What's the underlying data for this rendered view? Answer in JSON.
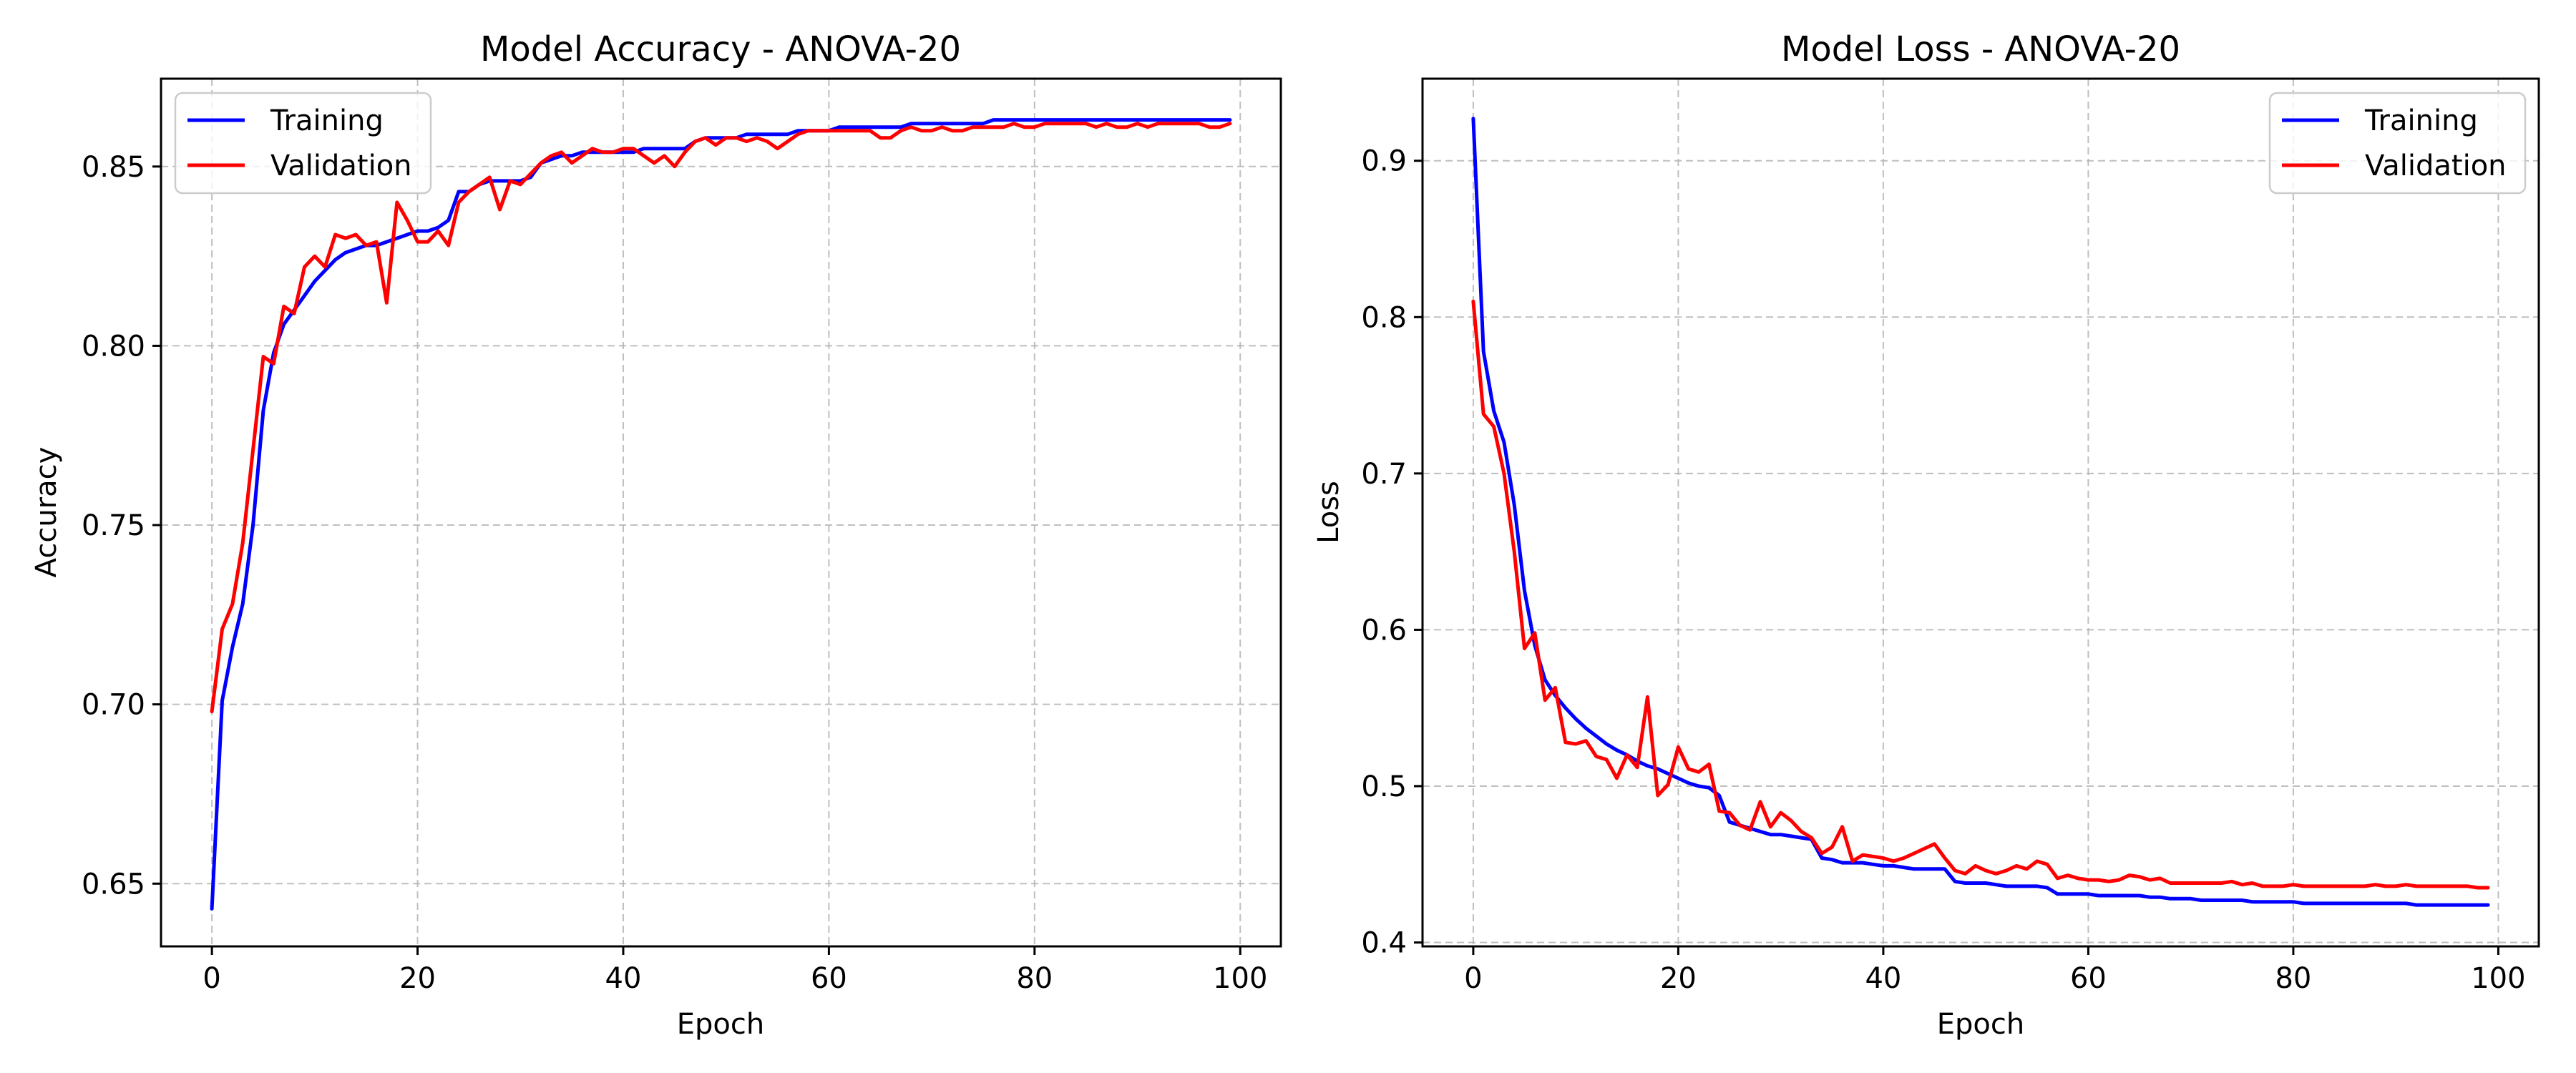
{
  "colors": {
    "training": "#0000ff",
    "validation": "#ff0000"
  },
  "chart_data": [
    {
      "type": "line",
      "title": "Model Accuracy - ANOVA-20",
      "xlabel": "Epoch",
      "ylabel": "Accuracy",
      "xlim": [
        -4.95,
        103.95
      ],
      "ylim": [
        0.6325,
        0.8745
      ],
      "xticks": [
        0,
        20,
        40,
        60,
        80,
        100
      ],
      "xtick_labels": [
        "0",
        "20",
        "40",
        "60",
        "80",
        "100"
      ],
      "yticks": [
        0.65,
        0.7,
        0.75,
        0.8,
        0.85
      ],
      "ytick_labels": [
        "0.65",
        "0.70",
        "0.75",
        "0.80",
        "0.85"
      ],
      "grid": true,
      "legend_position": "upper-left",
      "series": [
        {
          "name": "Training",
          "color": "#0000ff",
          "values": [
            0.643,
            0.701,
            0.716,
            0.728,
            0.75,
            0.782,
            0.798,
            0.806,
            0.81,
            0.814,
            0.818,
            0.821,
            0.824,
            0.826,
            0.827,
            0.828,
            0.828,
            0.829,
            0.83,
            0.831,
            0.832,
            0.832,
            0.833,
            0.835,
            0.843,
            0.843,
            0.845,
            0.846,
            0.846,
            0.846,
            0.846,
            0.847,
            0.851,
            0.852,
            0.853,
            0.853,
            0.854,
            0.854,
            0.854,
            0.854,
            0.854,
            0.854,
            0.855,
            0.855,
            0.855,
            0.855,
            0.855,
            0.857,
            0.858,
            0.858,
            0.858,
            0.858,
            0.859,
            0.859,
            0.859,
            0.859,
            0.859,
            0.86,
            0.86,
            0.86,
            0.86,
            0.861,
            0.861,
            0.861,
            0.861,
            0.861,
            0.861,
            0.861,
            0.862,
            0.862,
            0.862,
            0.862,
            0.862,
            0.862,
            0.862,
            0.862,
            0.863,
            0.863,
            0.863,
            0.863,
            0.863,
            0.863,
            0.863,
            0.863,
            0.863,
            0.863,
            0.863,
            0.863,
            0.863,
            0.863,
            0.863,
            0.863,
            0.863,
            0.863,
            0.863,
            0.863,
            0.863,
            0.863,
            0.863,
            0.863
          ]
        },
        {
          "name": "Validation",
          "color": "#ff0000",
          "values": [
            0.698,
            0.721,
            0.728,
            0.745,
            0.771,
            0.797,
            0.795,
            0.811,
            0.809,
            0.822,
            0.825,
            0.822,
            0.831,
            0.83,
            0.831,
            0.828,
            0.829,
            0.812,
            0.84,
            0.835,
            0.829,
            0.829,
            0.832,
            0.828,
            0.84,
            0.843,
            0.845,
            0.847,
            0.838,
            0.846,
            0.845,
            0.848,
            0.851,
            0.853,
            0.854,
            0.851,
            0.853,
            0.855,
            0.854,
            0.854,
            0.855,
            0.855,
            0.853,
            0.851,
            0.853,
            0.85,
            0.854,
            0.857,
            0.858,
            0.856,
            0.858,
            0.858,
            0.857,
            0.858,
            0.857,
            0.855,
            0.857,
            0.859,
            0.86,
            0.86,
            0.86,
            0.86,
            0.86,
            0.86,
            0.86,
            0.858,
            0.858,
            0.86,
            0.861,
            0.86,
            0.86,
            0.861,
            0.86,
            0.86,
            0.861,
            0.861,
            0.861,
            0.861,
            0.862,
            0.861,
            0.861,
            0.862,
            0.862,
            0.862,
            0.862,
            0.862,
            0.861,
            0.862,
            0.861,
            0.861,
            0.862,
            0.861,
            0.862,
            0.862,
            0.862,
            0.862,
            0.862,
            0.861,
            0.861,
            0.862
          ]
        }
      ]
    },
    {
      "type": "line",
      "title": "Model Loss - ANOVA-20",
      "xlabel": "Epoch",
      "ylabel": "Loss",
      "xlim": [
        -4.95,
        103.95
      ],
      "ylim": [
        0.3975,
        0.9525
      ],
      "xticks": [
        0,
        20,
        40,
        60,
        80,
        100
      ],
      "xtick_labels": [
        "0",
        "20",
        "40",
        "60",
        "80",
        "100"
      ],
      "yticks": [
        0.4,
        0.5,
        0.6,
        0.7,
        0.8,
        0.9
      ],
      "ytick_labels": [
        "0.4",
        "0.5",
        "0.6",
        "0.7",
        "0.8",
        "0.9"
      ],
      "grid": true,
      "legend_position": "upper-right",
      "series": [
        {
          "name": "Training",
          "color": "#0000ff",
          "values": [
            0.927,
            0.778,
            0.74,
            0.72,
            0.68,
            0.625,
            0.59,
            0.568,
            0.558,
            0.55,
            0.543,
            0.537,
            0.532,
            0.527,
            0.523,
            0.52,
            0.516,
            0.513,
            0.511,
            0.508,
            0.505,
            0.502,
            0.5,
            0.499,
            0.494,
            0.477,
            0.475,
            0.473,
            0.471,
            0.469,
            0.469,
            0.468,
            0.467,
            0.466,
            0.454,
            0.453,
            0.451,
            0.451,
            0.451,
            0.45,
            0.449,
            0.449,
            0.448,
            0.447,
            0.447,
            0.447,
            0.447,
            0.439,
            0.438,
            0.438,
            0.438,
            0.437,
            0.436,
            0.436,
            0.436,
            0.436,
            0.435,
            0.431,
            0.431,
            0.431,
            0.431,
            0.43,
            0.43,
            0.43,
            0.43,
            0.43,
            0.429,
            0.429,
            0.428,
            0.428,
            0.428,
            0.427,
            0.427,
            0.427,
            0.427,
            0.427,
            0.426,
            0.426,
            0.426,
            0.426,
            0.426,
            0.425,
            0.425,
            0.425,
            0.425,
            0.425,
            0.425,
            0.425,
            0.425,
            0.425,
            0.425,
            0.425,
            0.424,
            0.424,
            0.424,
            0.424,
            0.424,
            0.424,
            0.424,
            0.424
          ]
        },
        {
          "name": "Validation",
          "color": "#ff0000",
          "values": [
            0.81,
            0.738,
            0.73,
            0.7,
            0.65,
            0.588,
            0.598,
            0.555,
            0.563,
            0.528,
            0.527,
            0.529,
            0.519,
            0.517,
            0.505,
            0.52,
            0.512,
            0.557,
            0.494,
            0.501,
            0.525,
            0.511,
            0.509,
            0.514,
            0.484,
            0.483,
            0.475,
            0.472,
            0.49,
            0.474,
            0.483,
            0.478,
            0.471,
            0.467,
            0.457,
            0.461,
            0.474,
            0.452,
            0.456,
            0.455,
            0.454,
            0.452,
            0.454,
            0.457,
            0.46,
            0.463,
            0.454,
            0.446,
            0.444,
            0.449,
            0.446,
            0.444,
            0.446,
            0.449,
            0.447,
            0.452,
            0.45,
            0.441,
            0.443,
            0.441,
            0.44,
            0.44,
            0.439,
            0.44,
            0.443,
            0.442,
            0.44,
            0.441,
            0.438,
            0.438,
            0.438,
            0.438,
            0.438,
            0.438,
            0.439,
            0.437,
            0.438,
            0.436,
            0.436,
            0.436,
            0.437,
            0.436,
            0.436,
            0.436,
            0.436,
            0.436,
            0.436,
            0.436,
            0.437,
            0.436,
            0.436,
            0.437,
            0.436,
            0.436,
            0.436,
            0.436,
            0.436,
            0.436,
            0.435,
            0.435
          ]
        }
      ]
    }
  ]
}
